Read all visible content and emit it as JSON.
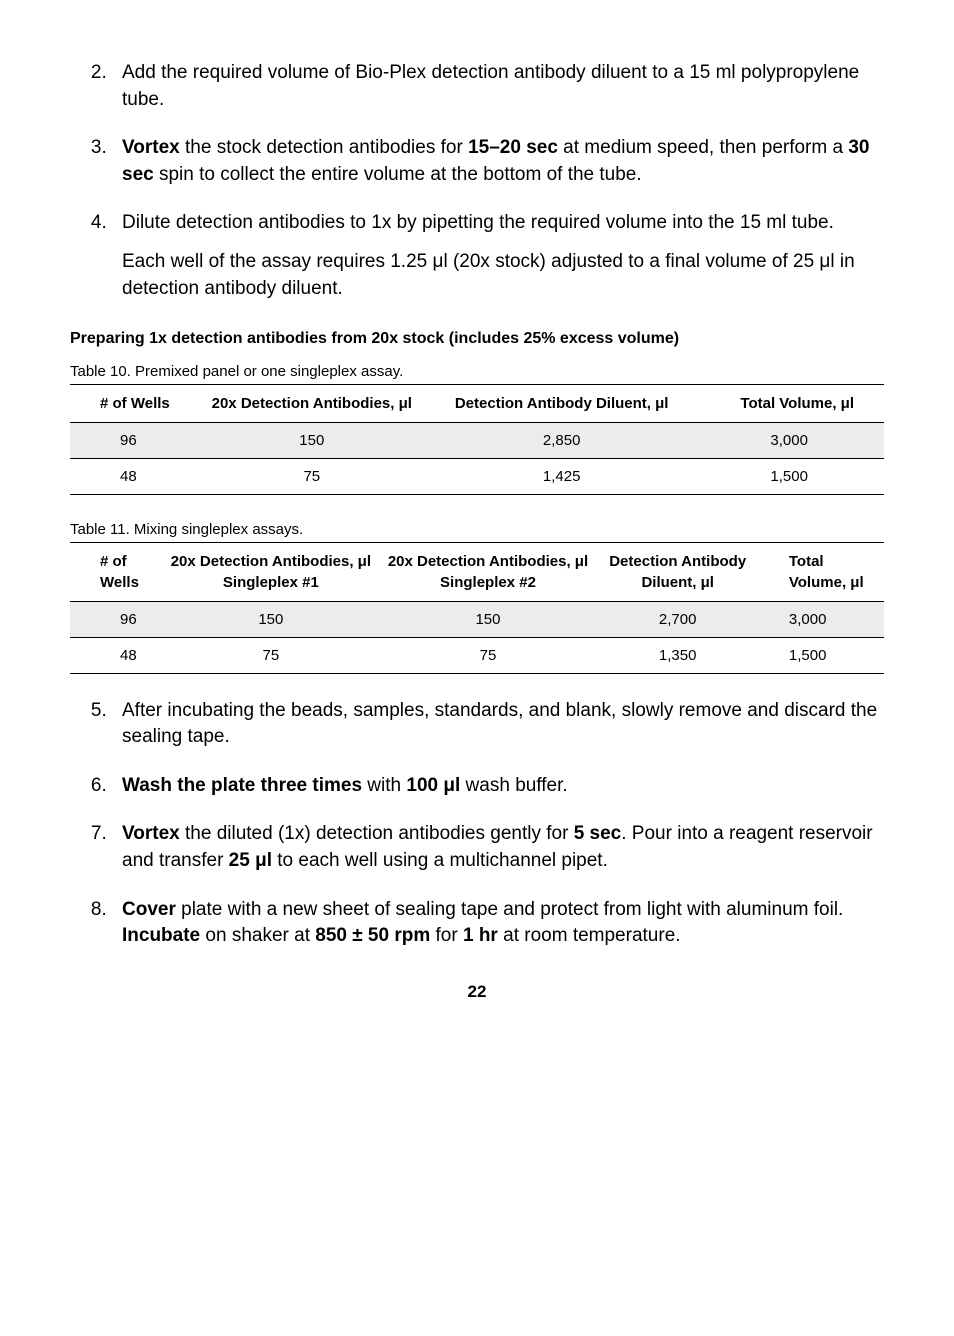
{
  "list1": {
    "item2": "Add the required volume of Bio-Plex detection antibody diluent to a 15 ml polypropylene tube.",
    "item3_a": "Vortex",
    "item3_b": " the stock detection antibodies for ",
    "item3_c": "15–20 sec",
    "item3_d": " at medium speed, then perform a ",
    "item3_e": "30 sec",
    "item3_f": " spin to collect the entire volume at the bottom of the tube.",
    "item4_a": "Dilute detection antibodies to 1x by pipetting the required volume into the 15 ml tube.",
    "item4_b": "Each well of the assay requires 1.25 μl (20x stock) adjusted to a final volume of 25 μl in detection antibody diluent."
  },
  "section_heading": "Preparing 1x detection antibodies from 20x stock (includes 25% excess volume)",
  "table10": {
    "caption": "Table 10. Premixed panel or one singleplex assay.",
    "headers": {
      "c1": "# of Wells",
      "c2": "20x Detection Antibodies, μl",
      "c3": "Detection Antibody Diluent, μl",
      "c4": "Total Volume, μl"
    },
    "rows": [
      {
        "c1": "96",
        "c2": "150",
        "c3": "2,850",
        "c4": "3,000"
      },
      {
        "c1": "48",
        "c2": "75",
        "c3": "1,425",
        "c4": "1,500"
      }
    ]
  },
  "table11": {
    "caption": "Table 11. Mixing singleplex assays.",
    "headers": {
      "c1": "# of Wells",
      "c2": "20x Detection Antibodies, μl Singleplex #1",
      "c3": "20x Detection Antibodies, μl Singleplex #2",
      "c4": "Detection Antibody Diluent, μl",
      "c5": "Total Volume, μl"
    },
    "rows": [
      {
        "c1": "96",
        "c2": "150",
        "c3": "150",
        "c4": "2,700",
        "c5": "3,000"
      },
      {
        "c1": "48",
        "c2": "75",
        "c3": "75",
        "c4": "1,350",
        "c5": "1,500"
      }
    ]
  },
  "list2": {
    "item5": "After incubating the beads, samples, standards, and blank, slowly remove and discard the sealing tape.",
    "item6_a": "Wash the plate three times",
    "item6_b": " with ",
    "item6_c": "100 μl",
    "item6_d": " wash buffer.",
    "item7_a": "Vortex",
    "item7_b": " the diluted (1x) detection antibodies gently for ",
    "item7_c": "5 sec",
    "item7_d": ". Pour into a reagent reservoir and transfer ",
    "item7_e": "25 μl",
    "item7_f": " to each well using a multichannel pipet.",
    "item8_a": "Cover",
    "item8_b": " plate with a new sheet of sealing tape and protect from light with aluminum foil. ",
    "item8_c": "Incubate",
    "item8_d": " on shaker at ",
    "item8_e": "850 ± 50 rpm",
    "item8_f": " for ",
    "item8_g": "1 hr",
    "item8_h": " at room temperature."
  },
  "page_number": "22"
}
